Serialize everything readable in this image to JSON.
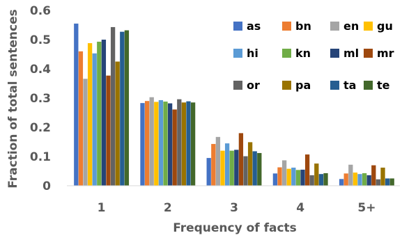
{
  "chart_data": {
    "type": "bar",
    "title": "",
    "xlabel": "Frequency of facts",
    "ylabel": "Fraction of total sentences",
    "categories": [
      "1",
      "2",
      "3",
      "4",
      "5+"
    ],
    "ylim": [
      0,
      0.6
    ],
    "yticks": [
      "0",
      "0.1",
      "0.2",
      "0.3",
      "0.4",
      "0.5",
      "0.6"
    ],
    "grid": false,
    "legend_position": "top-right",
    "series": [
      {
        "name": "as",
        "color": "#4472C4",
        "values": [
          0.555,
          0.283,
          0.095,
          0.042,
          0.023
        ]
      },
      {
        "name": "bn",
        "color": "#ED7D31",
        "values": [
          0.46,
          0.29,
          0.143,
          0.063,
          0.042
        ]
      },
      {
        "name": "en",
        "color": "#A5A5A5",
        "values": [
          0.366,
          0.303,
          0.167,
          0.087,
          0.072
        ]
      },
      {
        "name": "gu",
        "color": "#FFC000",
        "values": [
          0.488,
          0.287,
          0.12,
          0.058,
          0.045
        ]
      },
      {
        "name": "hi",
        "color": "#5B9BD5",
        "values": [
          0.453,
          0.293,
          0.145,
          0.062,
          0.04
        ]
      },
      {
        "name": "kn",
        "color": "#70AD47",
        "values": [
          0.493,
          0.288,
          0.12,
          0.054,
          0.043
        ]
      },
      {
        "name": "ml",
        "color": "#264478",
        "values": [
          0.5,
          0.282,
          0.123,
          0.055,
          0.036
        ]
      },
      {
        "name": "mr",
        "color": "#9E480E",
        "values": [
          0.377,
          0.261,
          0.18,
          0.107,
          0.07
        ]
      },
      {
        "name": "or",
        "color": "#636363",
        "values": [
          0.543,
          0.296,
          0.101,
          0.036,
          0.022
        ]
      },
      {
        "name": "pa",
        "color": "#997300",
        "values": [
          0.425,
          0.285,
          0.149,
          0.076,
          0.062
        ]
      },
      {
        "name": "ta",
        "color": "#255E91",
        "values": [
          0.527,
          0.289,
          0.118,
          0.04,
          0.025
        ]
      },
      {
        "name": "te",
        "color": "#43682B",
        "values": [
          0.532,
          0.285,
          0.112,
          0.043,
          0.025
        ]
      }
    ]
  }
}
